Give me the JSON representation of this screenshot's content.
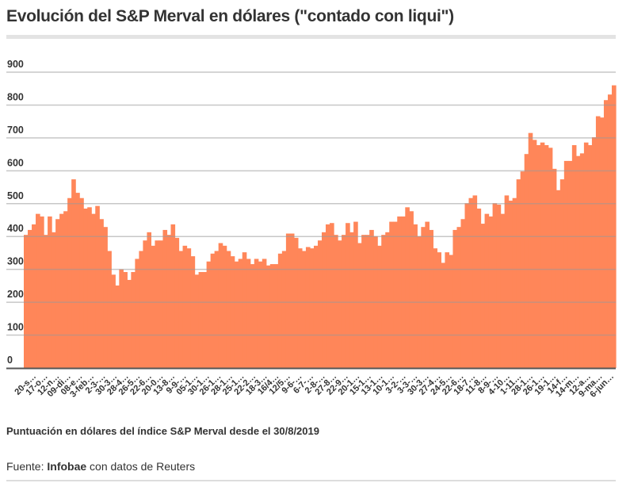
{
  "title": "Evolución del S&P Merval en dólares (\"contado con liqui\")",
  "caption": "Puntuación en dólares del índice S&P Merval desde el 30/8/2019",
  "source": {
    "prefix": "Fuente: ",
    "brand": "Infobae",
    "suffix": " con datos de Reuters"
  },
  "colors": {
    "bar": "#ff8659",
    "grid": "#999999",
    "axis": "#555555",
    "text": "#333333"
  },
  "chart_data": {
    "type": "bar",
    "title": "Evolución del S&P Merval en dólares (\"contado con liqui\")",
    "xlabel": "",
    "ylabel": "",
    "ylim": [
      0,
      900
    ],
    "yticks": [
      0,
      100,
      200,
      300,
      400,
      500,
      600,
      700,
      800,
      900
    ],
    "grid": true,
    "xtick_labels": [
      "20-s…",
      "17-o…",
      "12-n…",
      "09-di…",
      "08-e…",
      "3-feb…",
      "2-3-…",
      "30-3…",
      "28-4…",
      "26-5…",
      "22-6…",
      "20-0…",
      "13-8…",
      "9-9-…",
      "05-1…",
      "30-1…",
      "26-1…",
      "28-1…",
      "25-1…",
      "22-2…",
      "18-3…",
      "16/4…",
      "12/5…",
      "9-6-…",
      "6-7-…",
      "2-8-…",
      "27-8…",
      "22-9…",
      "20-1…",
      "15-1…",
      "13-1…",
      "10-1…",
      "3-2-…",
      "3-3-…",
      "30-3…",
      "27-4…",
      "24-5…",
      "22-6…",
      "18-7…",
      "11-8…",
      "8-9-…",
      "4-10…",
      "1-11…",
      "28-1…",
      "26-1…",
      "19-1…",
      "14-f…",
      "14-m…",
      "12-a…",
      "9-ma…",
      "6-jun…"
    ],
    "values": [
      405,
      420,
      437,
      469,
      461,
      405,
      461,
      413,
      453,
      469,
      477,
      517,
      574,
      533,
      517,
      485,
      489,
      469,
      493,
      453,
      429,
      356,
      284,
      251,
      300,
      292,
      268,
      292,
      332,
      356,
      388,
      413,
      372,
      388,
      388,
      420,
      405,
      437,
      396,
      356,
      372,
      364,
      340,
      284,
      292,
      292,
      324,
      348,
      356,
      380,
      372,
      356,
      340,
      324,
      332,
      352,
      332,
      316,
      332,
      324,
      332,
      312,
      316,
      316,
      348,
      356,
      409,
      409,
      396,
      364,
      356,
      368,
      364,
      372,
      388,
      413,
      437,
      441,
      405,
      388,
      405,
      441,
      413,
      445,
      380,
      405,
      405,
      420,
      401,
      372,
      405,
      413,
      445,
      445,
      461,
      461,
      489,
      477,
      437,
      401,
      429,
      445,
      420,
      364,
      352,
      320,
      352,
      344,
      420,
      429,
      453,
      501,
      517,
      525,
      485,
      439,
      469,
      461,
      501,
      497,
      469,
      525,
      509,
      517,
      574,
      598,
      651,
      715,
      694,
      678,
      686,
      678,
      670,
      606,
      541,
      574,
      630,
      630,
      678,
      645,
      653,
      686,
      678,
      702,
      766,
      762,
      815,
      832,
      860
    ]
  }
}
